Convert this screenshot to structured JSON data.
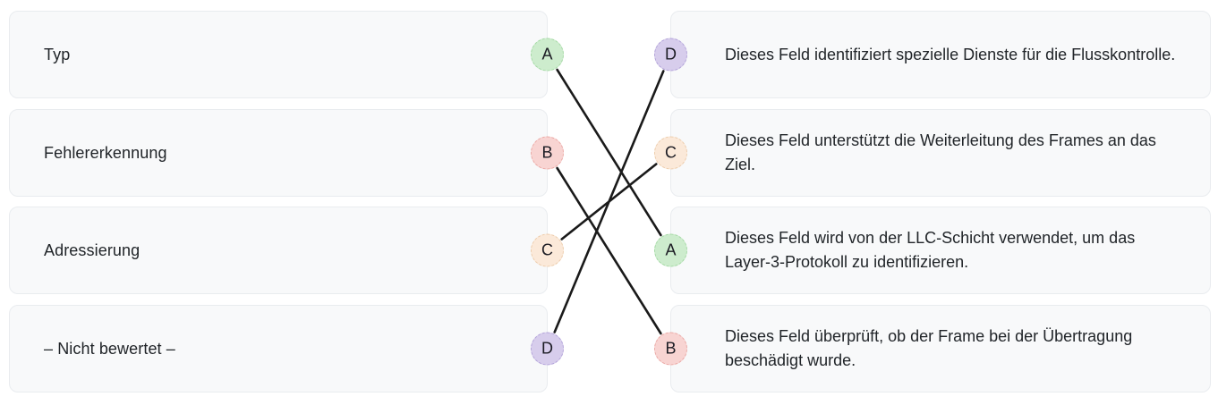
{
  "matching_exercise": {
    "left_items": [
      {
        "letter": "A",
        "label": "Typ",
        "fill": "#cdeccd",
        "border": "#a3d9a3"
      },
      {
        "letter": "B",
        "label": "Fehlererkennung",
        "fill": "#f8d4d2",
        "border": "#eba8a4"
      },
      {
        "letter": "C",
        "label": "Adressierung",
        "fill": "#fbe9d9",
        "border": "#edccab"
      },
      {
        "letter": "D",
        "label": "– Nicht bewertet –",
        "fill": "#d7cdec",
        "border": "#b2a2d9"
      }
    ],
    "right_items": [
      {
        "letter": "D",
        "text": "Dieses Feld identifiziert spezielle Dienste für die Flusskontrolle.",
        "fill": "#d7cdec",
        "border": "#b2a2d9"
      },
      {
        "letter": "C",
        "text": "Dieses Feld unterstützt die Weiterleitung des Frames an das Ziel.",
        "fill": "#fbe9d9",
        "border": "#edccab"
      },
      {
        "letter": "A",
        "text": "Dieses Feld wird von der LLC-Schicht verwendet, um das Layer-3-Protokoll zu identifizieren.",
        "fill": "#cdeccd",
        "border": "#a3d9a3"
      },
      {
        "letter": "B",
        "text": "Dieses Feld überprüft, ob der Frame bei der Übertragung beschädigt wurde.",
        "fill": "#f8d4d2",
        "border": "#eba8a4"
      }
    ],
    "connections": [
      {
        "from": "A",
        "to": "A"
      },
      {
        "from": "B",
        "to": "B"
      },
      {
        "from": "C",
        "to": "C"
      },
      {
        "from": "D",
        "to": "D"
      }
    ],
    "line_color": "#1a1a1a"
  }
}
